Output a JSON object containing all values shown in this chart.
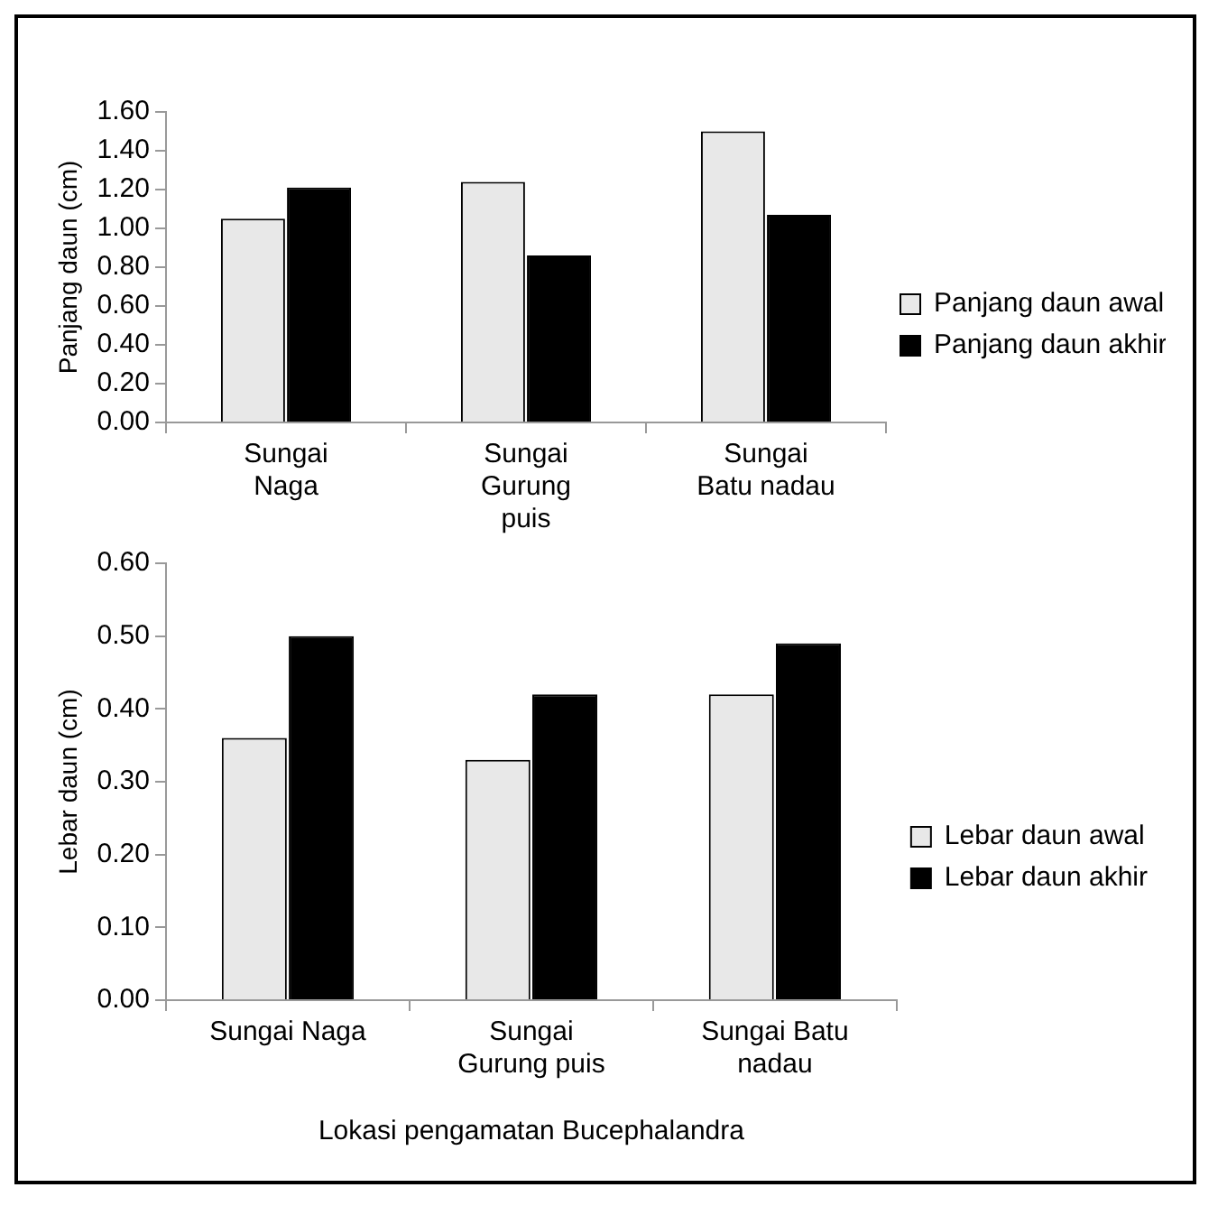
{
  "chart_data": [
    {
      "type": "bar",
      "ylabel": "Panjang daun (cm)",
      "categories": [
        "Sungai Naga",
        "Sungai Gurung puis",
        "Sungai Batu nadau"
      ],
      "series": [
        {
          "name": "Panjang daun awal",
          "color": "#e8e8e8",
          "values": [
            1.05,
            1.24,
            1.5
          ]
        },
        {
          "name": "Panjang daun akhir",
          "color": "#000000",
          "values": [
            1.21,
            0.86,
            1.07
          ]
        }
      ],
      "ylim": [
        0,
        1.6
      ],
      "yticks": [
        {
          "value": 0,
          "label": "0.00"
        },
        {
          "value": 0.2,
          "label": "0.20"
        },
        {
          "value": 0.4,
          "label": "0.40"
        },
        {
          "value": 0.6,
          "label": "0.60"
        },
        {
          "value": 0.8,
          "label": "0.80"
        },
        {
          "value": 1,
          "label": "1.00"
        },
        {
          "value": 1.2,
          "label": "1.20"
        },
        {
          "value": 1.4,
          "label": "1.40"
        },
        {
          "value": 1.6,
          "label": "1.60"
        }
      ],
      "legend": "right"
    },
    {
      "type": "bar",
      "ylabel": "Lebar daun (cm)",
      "xlabel": "Lokasi pengamatan Bucephalandra",
      "categories": [
        "Sungai Naga",
        "Sungai Gurung puis",
        "Sungai Batu nadau"
      ],
      "series": [
        {
          "name": "Lebar daun awal",
          "color": "#e8e8e8",
          "values": [
            0.36,
            0.33,
            0.42
          ]
        },
        {
          "name": "Lebar daun akhir",
          "color": "#000000",
          "values": [
            0.5,
            0.42,
            0.49
          ]
        }
      ],
      "ylim": [
        0,
        0.6
      ],
      "yticks": [
        {
          "value": 0,
          "label": "0.00"
        },
        {
          "value": 0.1,
          "label": "0.10"
        },
        {
          "value": 0.2,
          "label": "0.20"
        },
        {
          "value": 0.3,
          "label": "0.30"
        },
        {
          "value": 0.4,
          "label": "0.40"
        },
        {
          "value": 0.5,
          "label": "0.50"
        },
        {
          "value": 0.6,
          "label": "0.60"
        }
      ],
      "legend": "right"
    }
  ]
}
